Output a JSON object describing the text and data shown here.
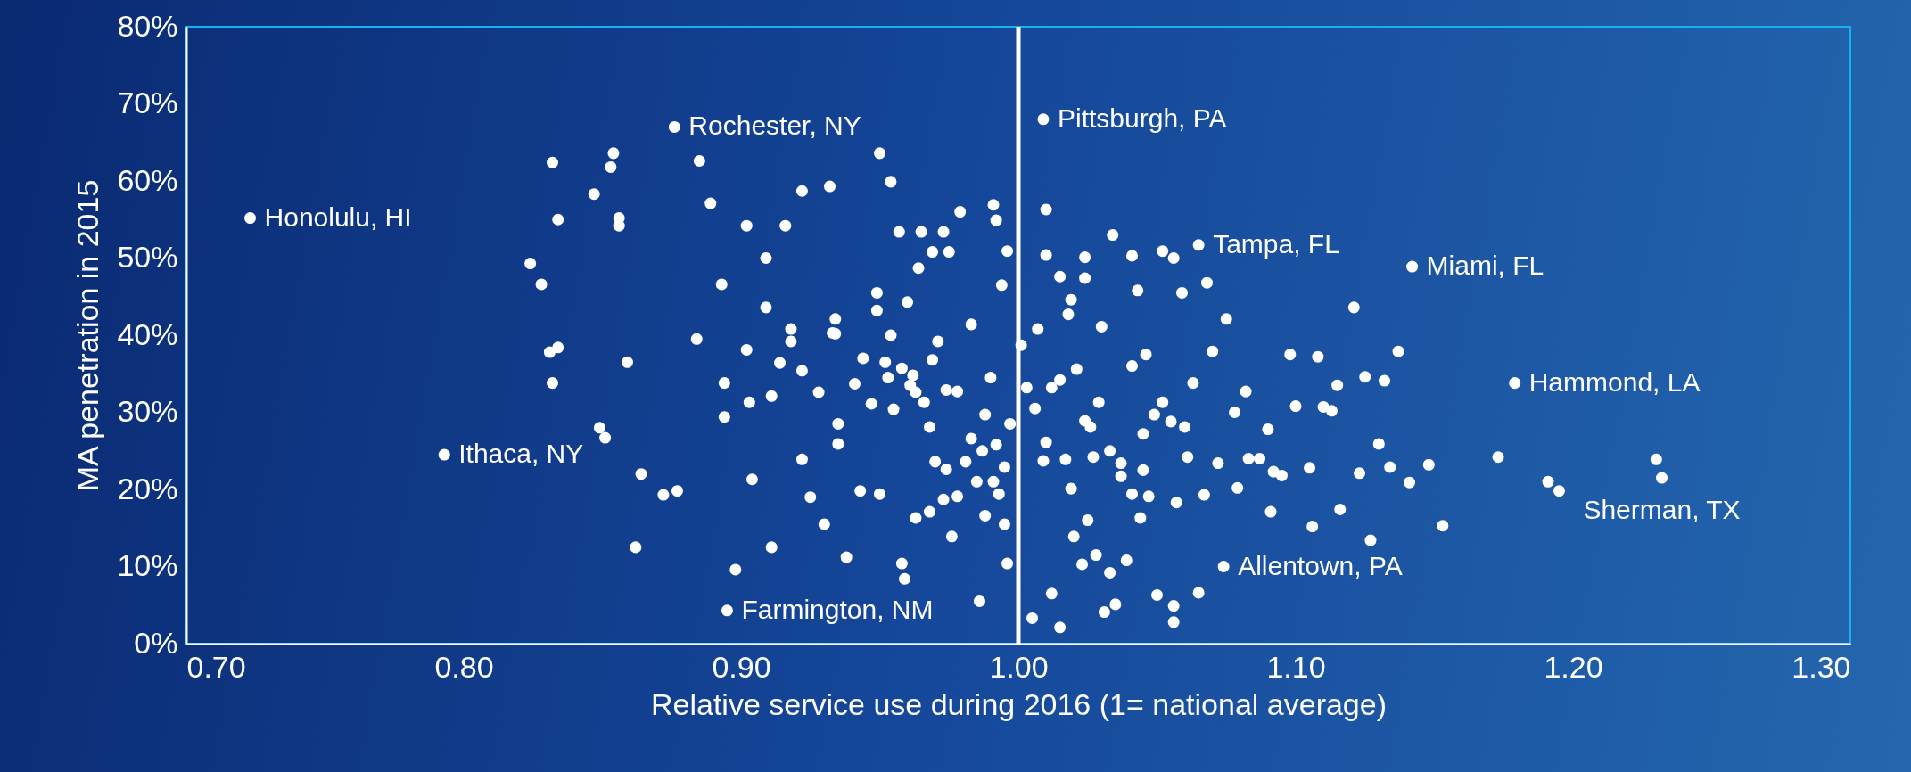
{
  "chart_data": {
    "type": "scatter",
    "xlabel": "Relative service use during 2016 (1= national average)",
    "ylabel": "MA penetration in 2015",
    "marker": "circle",
    "xlim": [
      0.7,
      1.3
    ],
    "ylim": [
      0,
      80
    ],
    "xticks": [
      {
        "value": 0.7,
        "label": "0.70"
      },
      {
        "value": 0.8,
        "label": "0.80"
      },
      {
        "value": 0.9,
        "label": "0.90"
      },
      {
        "value": 1.0,
        "label": "1.00"
      },
      {
        "value": 1.1,
        "label": "1.10"
      },
      {
        "value": 1.2,
        "label": "1.20"
      },
      {
        "value": 1.3,
        "label": "1.30"
      }
    ],
    "yticks": [
      {
        "value": 0,
        "label": "0%"
      },
      {
        "value": 10,
        "label": "10%"
      },
      {
        "value": 20,
        "label": "20%"
      },
      {
        "value": 30,
        "label": "30%"
      },
      {
        "value": 40,
        "label": "40%"
      },
      {
        "value": 50,
        "label": "50%"
      },
      {
        "value": 60,
        "label": "60%"
      },
      {
        "value": 70,
        "label": "70%"
      },
      {
        "value": 80,
        "label": "80%"
      }
    ],
    "ref_lines": [
      {
        "axis": "x",
        "value": 1.0,
        "color": "#ffffff"
      }
    ],
    "annotations": [
      {
        "text": "Honolulu, HI",
        "x": 0.723,
        "y": 55.2
      },
      {
        "text": "Rochester, NY",
        "x": 0.876,
        "y": 67.0
      },
      {
        "text": "Pittsburgh, PA",
        "x": 1.009,
        "y": 68.0
      },
      {
        "text": "Tampa, FL",
        "x": 1.065,
        "y": 51.7
      },
      {
        "text": "Miami, FL",
        "x": 1.142,
        "y": 48.9
      },
      {
        "text": "Hammond, LA",
        "x": 1.179,
        "y": 33.8
      },
      {
        "text": "Sherman, TX",
        "x": 1.232,
        "y": 21.5
      },
      {
        "text": "Allentown, PA",
        "x": 1.074,
        "y": 10.0
      },
      {
        "text": "Farmington, NM",
        "x": 0.895,
        "y": 4.3
      },
      {
        "text": "Ithaca, NY",
        "x": 0.793,
        "y": 24.5
      }
    ],
    "series": [
      {
        "color": "#ffffff",
        "x": [
          0.723,
          0.876,
          1.009,
          1.065,
          1.142,
          1.179,
          1.232,
          1.074,
          0.895,
          0.793,
          0.832,
          0.854,
          0.853,
          0.847,
          0.834,
          0.856,
          0.856,
          0.824,
          0.828,
          0.834,
          0.831,
          0.832,
          0.859,
          0.849,
          0.851,
          0.864,
          0.862,
          0.872,
          0.877,
          0.885,
          0.889,
          0.884,
          0.894,
          0.894,
          0.893,
          0.902,
          0.902,
          0.903,
          0.904,
          0.898,
          0.909,
          0.909,
          0.911,
          0.911,
          0.914,
          0.916,
          0.918,
          0.918,
          0.922,
          0.922,
          0.922,
          0.925,
          0.928,
          0.93,
          0.932,
          0.933,
          0.934,
          0.934,
          0.935,
          0.935,
          0.938,
          0.941,
          0.943,
          0.944,
          0.947,
          0.95,
          0.949,
          0.949,
          0.95,
          0.952,
          0.953,
          0.954,
          0.954,
          0.957,
          0.958,
          0.959,
          0.96,
          0.961,
          0.962,
          0.964,
          0.965,
          0.966,
          0.968,
          0.969,
          0.97,
          0.971,
          0.973,
          0.974,
          0.975,
          0.976,
          0.978,
          0.979,
          0.981,
          0.983,
          0.986,
          0.988,
          0.99,
          0.991,
          0.992,
          0.994,
          0.996,
          0.995,
          0.995,
          0.996,
          0.997,
          1.001,
          1.003,
          1.005,
          1.01,
          1.01,
          1.01,
          1.009,
          1.012,
          1.015,
          1.015,
          1.017,
          1.019,
          1.019,
          1.021,
          1.023,
          1.024,
          1.024,
          1.025,
          1.026,
          1.027,
          1.028,
          1.029,
          1.031,
          1.034,
          1.035,
          1.037,
          1.041,
          1.043,
          1.045,
          1.045,
          1.046,
          1.047,
          1.05,
          1.052,
          1.055,
          1.056,
          1.056,
          1.056,
          1.057,
          1.059,
          1.063,
          1.065,
          1.067,
          1.068,
          1.07,
          1.075,
          1.078,
          1.082,
          1.083,
          1.087,
          1.09,
          1.091,
          1.092,
          1.095,
          1.098,
          1.1,
          1.105,
          1.106,
          1.108,
          1.11,
          1.113,
          1.115,
          1.116,
          1.121,
          1.123,
          1.125,
          1.127,
          1.13,
          1.132,
          1.134,
          1.137,
          1.141,
          1.148,
          1.153,
          1.173,
          1.191,
          1.195,
          1.23,
          0.974,
          0.969,
          0.963,
          0.958,
          0.955,
          0.983,
          0.988,
          0.991,
          0.985,
          0.978,
          0.973,
          0.968,
          0.963,
          0.987,
          0.993,
          0.992,
          1.006,
          1.012,
          1.015,
          1.024,
          1.033,
          1.037,
          1.041,
          1.044,
          1.049,
          1.052,
          1.06,
          1.061,
          1.072,
          1.007,
          1.018,
          1.03,
          1.041,
          1.02,
          1.033,
          1.039,
          1.079
        ],
        "values": [
          55.2,
          67.0,
          68.0,
          51.7,
          48.9,
          33.8,
          21.5,
          10.0,
          4.3,
          24.5,
          62.4,
          63.6,
          61.8,
          58.3,
          55.0,
          55.2,
          54.2,
          49.3,
          46.6,
          38.4,
          37.8,
          33.8,
          36.5,
          28.0,
          26.7,
          22.0,
          12.5,
          19.3,
          19.8,
          62.6,
          57.1,
          39.5,
          29.4,
          33.8,
          46.6,
          54.2,
          38.1,
          31.3,
          21.3,
          9.6,
          43.6,
          50.0,
          32.1,
          12.5,
          36.4,
          54.2,
          39.2,
          40.8,
          58.7,
          35.4,
          23.9,
          19.0,
          32.6,
          15.5,
          59.3,
          40.3,
          42.1,
          40.2,
          28.5,
          25.9,
          11.2,
          33.7,
          19.8,
          37.0,
          31.1,
          63.6,
          45.5,
          43.2,
          19.4,
          36.5,
          34.5,
          40.0,
          59.9,
          53.4,
          10.4,
          8.4,
          44.3,
          33.5,
          34.8,
          48.7,
          53.4,
          31.3,
          28.1,
          50.8,
          23.6,
          39.2,
          53.4,
          22.6,
          50.8,
          13.9,
          32.7,
          56.0,
          23.6,
          41.4,
          5.5,
          16.6,
          34.5,
          56.9,
          54.9,
          46.5,
          50.9,
          22.9,
          15.5,
          10.4,
          28.5,
          38.7,
          33.2,
          3.3,
          56.3,
          50.4,
          26.1,
          23.7,
          6.5,
          2.1,
          47.6,
          23.9,
          44.6,
          20.1,
          35.6,
          10.3,
          50.1,
          47.4,
          16.0,
          28.1,
          24.2,
          11.5,
          31.3,
          4.1,
          53.0,
          5.1,
          21.7,
          50.3,
          45.8,
          27.2,
          22.5,
          37.5,
          19.1,
          6.3,
          50.9,
          28.8,
          50.0,
          4.9,
          2.8,
          18.3,
          45.5,
          33.8,
          6.6,
          19.3,
          46.8,
          37.9,
          42.1,
          30.0,
          32.7,
          24.0,
          24.0,
          27.8,
          17.1,
          22.3,
          21.8,
          37.5,
          30.8,
          22.8,
          15.2,
          37.2,
          30.7,
          30.2,
          33.5,
          17.4,
          43.6,
          22.1,
          34.6,
          13.4,
          25.9,
          34.1,
          22.9,
          37.9,
          20.9,
          23.2,
          15.3,
          24.2,
          21.0,
          19.8,
          23.9,
          32.9,
          36.8,
          32.6,
          35.7,
          30.4,
          26.6,
          29.7,
          21.0,
          21.0,
          19.1,
          18.7,
          17.1,
          16.3,
          25.0,
          19.4,
          25.8,
          30.5,
          33.2,
          34.2,
          28.9,
          25.0,
          23.4,
          19.4,
          16.3,
          29.7,
          31.3,
          28.1,
          24.2,
          23.4,
          40.8,
          42.7,
          41.1,
          36.0,
          13.9,
          9.2,
          10.8,
          20.2
        ]
      }
    ]
  }
}
